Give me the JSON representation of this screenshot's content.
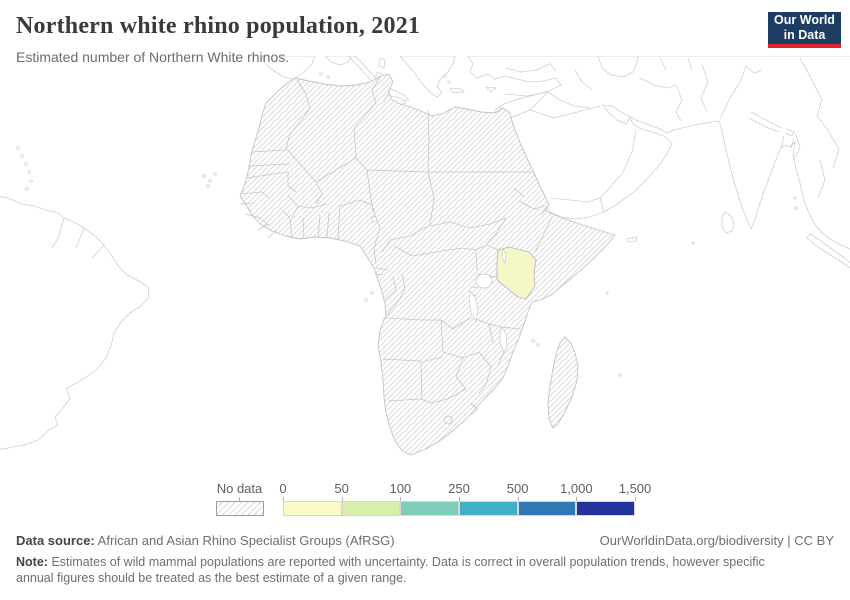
{
  "header": {
    "title": "Northern white rhino population, 2021",
    "subtitle": "Estimated number of Northern White rhinos."
  },
  "logo": {
    "line1": "Our World",
    "line2": "in Data",
    "bg_color": "#1d3d63",
    "accent_color": "#e0232d"
  },
  "map": {
    "highlighted_country": "Kenya",
    "highlighted_color": "#f6f7c6",
    "no_data_style": "diagonal-hatch",
    "border_color": "#c4c4c4"
  },
  "legend": {
    "no_data_label": "No data",
    "ticks": [
      "0",
      "50",
      "100",
      "250",
      "500",
      "1,000",
      "1,500"
    ],
    "colors": [
      "#f9fbc7",
      "#d8eeab",
      "#7fccb9",
      "#41b0c4",
      "#2e78b5",
      "#23339b"
    ]
  },
  "footer": {
    "source_label": "Data source:",
    "source_text": "African and Asian Rhino Specialist Groups (AfRSG)",
    "link_text": "OurWorldinData.org/biodiversity | CC BY",
    "note_label": "Note:",
    "note_text": "Estimates of wild mammal populations are reported with uncertainty. Data is correct in overall population trends, however specific annual figures should be treated as the best estimate of a given range."
  },
  "chart_data": {
    "type": "choropleth",
    "title": "Northern white rhino population, 2021",
    "subtitle": "Estimated number of Northern White rhinos.",
    "year": 2021,
    "region_shown": "Africa centered, with South America, Europe and Asia at edges",
    "legend_bin_edges": [
      0,
      50,
      100,
      250,
      500,
      1000,
      1500
    ],
    "legend_bin_edge_labels": [
      "0",
      "50",
      "100",
      "250",
      "500",
      "1,000",
      "1,500"
    ],
    "legend_colors": [
      "#f9fbc7",
      "#d8eeab",
      "#7fccb9",
      "#41b0c4",
      "#2e78b5",
      "#23339b"
    ],
    "values": [
      {
        "entity": "Kenya",
        "bin": "0-50",
        "color": "#f6f7c6"
      }
    ],
    "no_data": "All other African countries and Madagascar (hatched pattern)"
  }
}
